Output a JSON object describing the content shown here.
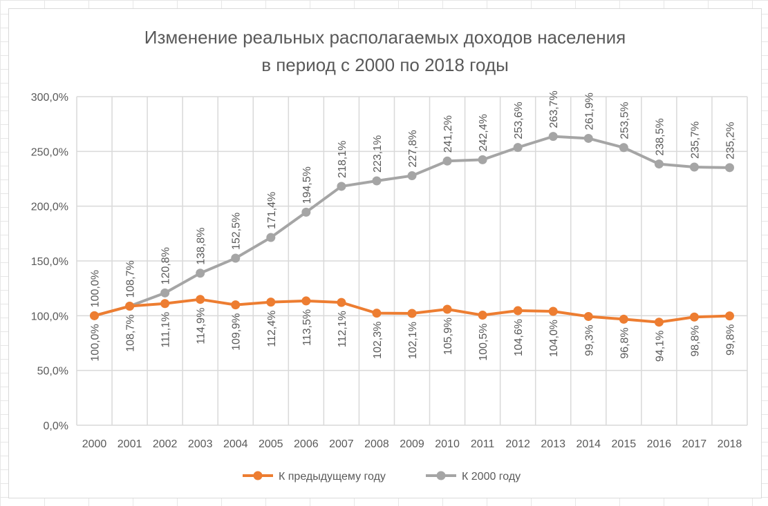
{
  "chart_data": {
    "type": "line",
    "title": [
      "Изменение реальных располагаемых доходов населения",
      "в период с 2000 по 2018 годы"
    ],
    "categories": [
      "2000",
      "2001",
      "2002",
      "2003",
      "2004",
      "2005",
      "2006",
      "2007",
      "2008",
      "2009",
      "2010",
      "2011",
      "2012",
      "2013",
      "2014",
      "2015",
      "2016",
      "2017",
      "2018"
    ],
    "ylim": [
      0,
      300
    ],
    "yticks": [
      "0,0%",
      "50,0%",
      "100,0%",
      "150,0%",
      "200,0%",
      "250,0%",
      "300,0%"
    ],
    "grid": true,
    "legend_position": "bottom",
    "series": [
      {
        "name": "К предыдущему году",
        "color": "#ed7d31",
        "label_position": "below",
        "values": [
          100.0,
          108.7,
          111.1,
          114.9,
          109.9,
          112.4,
          113.5,
          112.1,
          102.3,
          102.1,
          105.9,
          100.5,
          104.6,
          104.0,
          99.3,
          96.8,
          94.1,
          98.8,
          99.8
        ],
        "labels": [
          "100,0%",
          "108,7%",
          "111,1%",
          "114,9%",
          "109,9%",
          "112,4%",
          "113,5%",
          "112,1%",
          "102,3%",
          "102,1%",
          "105,9%",
          "100,5%",
          "104,6%",
          "104,0%",
          "99,3%",
          "96,8%",
          "94,1%",
          "98,8%",
          "99,8%"
        ]
      },
      {
        "name": "К 2000 году",
        "color": "#a5a5a5",
        "label_position": "above",
        "values": [
          100.0,
          108.7,
          120.8,
          138.8,
          152.5,
          171.4,
          194.5,
          218.1,
          223.1,
          227.8,
          241.2,
          242.4,
          253.6,
          263.7,
          261.9,
          253.5,
          238.5,
          235.7,
          235.2
        ],
        "labels": [
          "100,0%",
          "108,7%",
          "120,8%",
          "138,8%",
          "152,5%",
          "171,4%",
          "194,5%",
          "218,1%",
          "223,1%",
          "227,8%",
          "241,2%",
          "242,4%",
          "253,6%",
          "263,7%",
          "261,9%",
          "253,5%",
          "238,5%",
          "235,7%",
          "235,2%"
        ]
      }
    ]
  }
}
